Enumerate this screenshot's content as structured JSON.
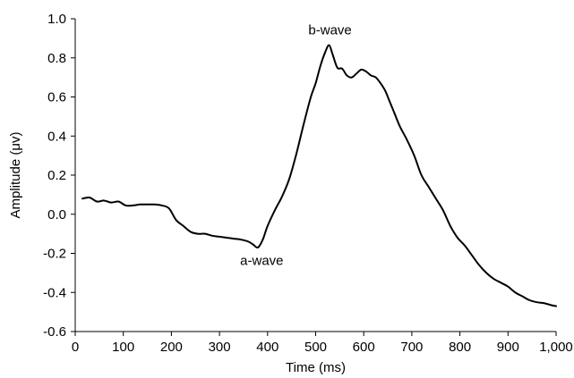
{
  "chart_data": {
    "type": "line",
    "title": "",
    "xlabel": "Time (ms)",
    "ylabel": "Amplitude (μv)",
    "xlim": [
      0,
      1000
    ],
    "ylim": [
      -0.6,
      1.0
    ],
    "x_ticks": [
      0,
      100,
      200,
      300,
      400,
      500,
      600,
      700,
      800,
      900,
      1000
    ],
    "x_tick_labels": [
      "0",
      "100",
      "200",
      "300",
      "400",
      "500",
      "600",
      "700",
      "800",
      "900",
      "1,000"
    ],
    "y_ticks": [
      -0.6,
      -0.4,
      -0.2,
      0.0,
      0.2,
      0.4,
      0.6,
      0.8,
      1.0
    ],
    "y_tick_labels": [
      "-0.6",
      "-0.4",
      "-0.2",
      "0.0",
      "0.2",
      "0.4",
      "0.6",
      "0.8",
      "1.0"
    ],
    "grid": false,
    "legend": "none",
    "line_color": "#000000",
    "annotations": [
      {
        "text": "b-wave",
        "x": 530,
        "y": 0.92
      },
      {
        "text": "a-wave",
        "x": 388,
        "y": -0.26
      }
    ],
    "series": [
      {
        "x": [
          15,
          30,
          45,
          60,
          75,
          90,
          105,
          120,
          135,
          150,
          165,
          180,
          195,
          210,
          225,
          240,
          255,
          270,
          285,
          300,
          315,
          330,
          345,
          360,
          370,
          380,
          390,
          400,
          415,
          430,
          445,
          460,
          475,
          490,
          500,
          510,
          520,
          528,
          535,
          545,
          555,
          565,
          575,
          585,
          595,
          605,
          615,
          625,
          635,
          645,
          655,
          665,
          675,
          690,
          705,
          720,
          735,
          750,
          765,
          780,
          795,
          810,
          825,
          840,
          855,
          870,
          885,
          900,
          915,
          930,
          945,
          960,
          975,
          990,
          1000
        ],
        "y": [
          0.08,
          0.085,
          0.065,
          0.07,
          0.06,
          0.065,
          0.045,
          0.045,
          0.05,
          0.05,
          0.05,
          0.045,
          0.03,
          -0.03,
          -0.06,
          -0.09,
          -0.1,
          -0.1,
          -0.11,
          -0.115,
          -0.12,
          -0.125,
          -0.13,
          -0.14,
          -0.155,
          -0.17,
          -0.13,
          -0.06,
          0.02,
          0.09,
          0.18,
          0.31,
          0.46,
          0.6,
          0.67,
          0.76,
          0.83,
          0.865,
          0.82,
          0.75,
          0.745,
          0.71,
          0.7,
          0.72,
          0.74,
          0.73,
          0.71,
          0.7,
          0.67,
          0.63,
          0.57,
          0.51,
          0.45,
          0.38,
          0.3,
          0.2,
          0.14,
          0.08,
          0.02,
          -0.06,
          -0.12,
          -0.16,
          -0.21,
          -0.26,
          -0.3,
          -0.33,
          -0.35,
          -0.37,
          -0.4,
          -0.42,
          -0.44,
          -0.45,
          -0.455,
          -0.465,
          -0.47
        ]
      }
    ]
  }
}
